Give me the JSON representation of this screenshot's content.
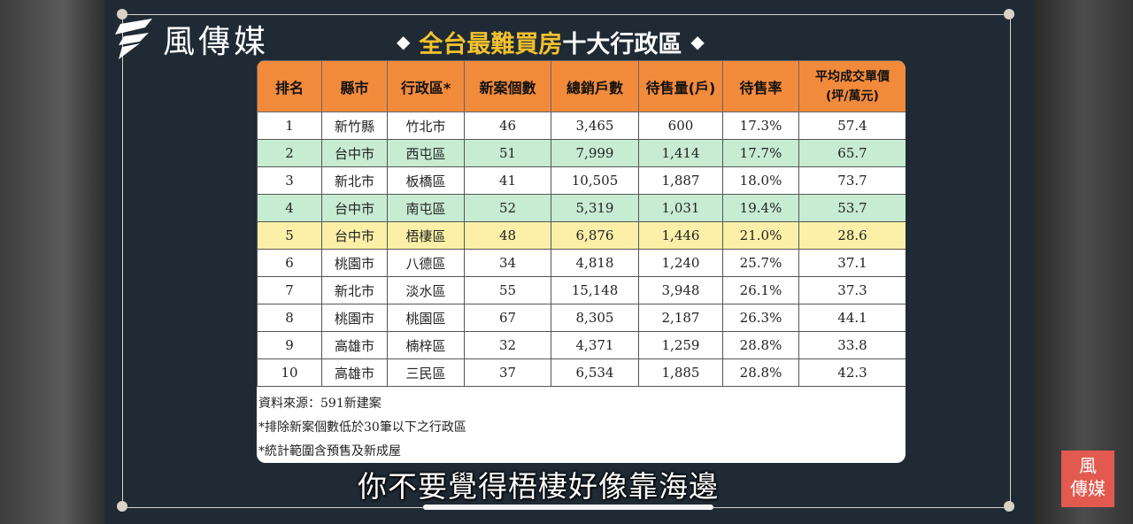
{
  "logo_text": "風傳媒",
  "title": {
    "gold": "全台最難買房",
    "white": "十大行政區"
  },
  "table": {
    "headers": [
      "排名",
      "縣市",
      "行政區*",
      "新案個數",
      "總銷戶數",
      "待售量(戶)",
      "待售率",
      "平均成交單價",
      "(坪/萬元)"
    ],
    "rows": [
      [
        "1",
        "新竹縣",
        "竹北市",
        "46",
        "3,465",
        "600",
        "17.3%",
        "57.4"
      ],
      [
        "2",
        "台中市",
        "西屯區",
        "51",
        "7,999",
        "1,414",
        "17.7%",
        "65.7"
      ],
      [
        "3",
        "新北市",
        "板橋區",
        "41",
        "10,505",
        "1,887",
        "18.0%",
        "73.7"
      ],
      [
        "4",
        "台中市",
        "南屯區",
        "52",
        "5,319",
        "1,031",
        "19.4%",
        "53.7"
      ],
      [
        "5",
        "台中市",
        "梧棲區",
        "48",
        "6,876",
        "1,446",
        "21.0%",
        "28.6"
      ],
      [
        "6",
        "桃園市",
        "八德區",
        "34",
        "4,818",
        "1,240",
        "25.7%",
        "37.1"
      ],
      [
        "7",
        "新北市",
        "淡水區",
        "55",
        "15,148",
        "3,948",
        "26.1%",
        "37.3"
      ],
      [
        "8",
        "桃園市",
        "桃園區",
        "67",
        "8,305",
        "2,187",
        "26.3%",
        "44.1"
      ],
      [
        "9",
        "高雄市",
        "楠梓區",
        "32",
        "4,371",
        "1,259",
        "28.8%",
        "33.8"
      ],
      [
        "10",
        "高雄市",
        "三民區",
        "37",
        "6,534",
        "1,885",
        "28.8%",
        "42.3"
      ]
    ]
  },
  "notes": [
    "資料來源：591新建案",
    "*排除新案個數低於30筆以下之行政區",
    "*統計範圍含預售及新成屋"
  ],
  "subtitle": "你不要覺得梧棲好像靠海邊",
  "stamp": {
    "line1": "風",
    "line2": "傳媒"
  },
  "colors": {
    "header": "#f28a3c",
    "green_row": "#c7ecd2",
    "yellow_row": "#fcf0a8",
    "title_gold": "#f2c12e"
  }
}
